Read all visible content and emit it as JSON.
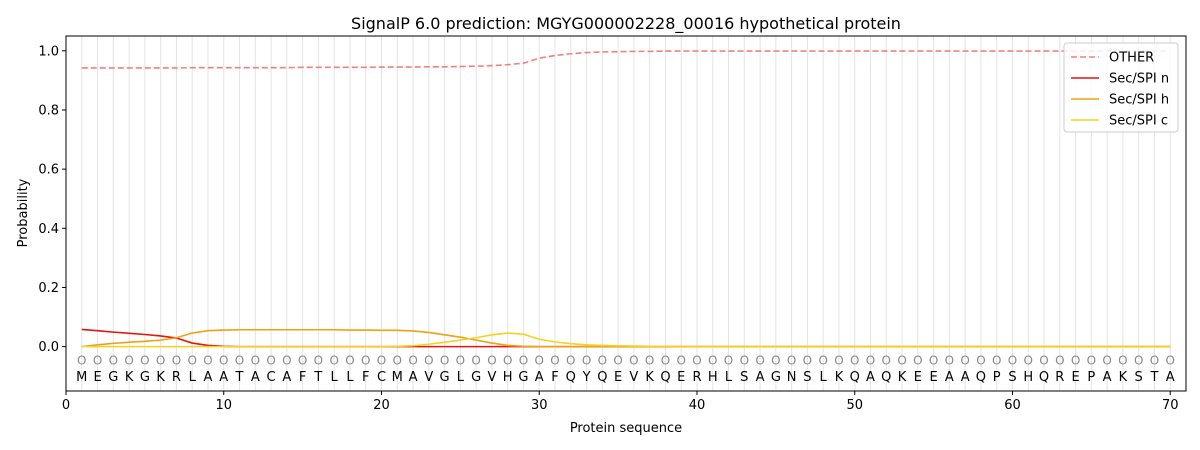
{
  "chart_data": {
    "type": "line",
    "title": "SignalP 6.0 prediction: MGYG000002228_00016 hypothetical protein",
    "xlabel": "Protein sequence",
    "ylabel": "Probability",
    "xlim": [
      0,
      71
    ],
    "ylim": [
      -0.15,
      1.05
    ],
    "x_ticks": [
      0,
      10,
      20,
      30,
      40,
      50,
      60,
      70
    ],
    "y_ticks": [
      0.0,
      0.2,
      0.4,
      0.6,
      0.8,
      1.0
    ],
    "x_tick_labels": [
      "0",
      "10",
      "20",
      "30",
      "40",
      "50",
      "60",
      "70"
    ],
    "y_tick_labels": [
      "0.0",
      "0.2",
      "0.4",
      "0.6",
      "0.8",
      "1.0"
    ],
    "legend_position": "top-right",
    "sequence": [
      "M",
      "E",
      "G",
      "K",
      "G",
      "K",
      "R",
      "L",
      "A",
      "A",
      "T",
      "A",
      "C",
      "A",
      "F",
      "T",
      "L",
      "L",
      "F",
      "C",
      "M",
      "A",
      "V",
      "G",
      "L",
      "G",
      "V",
      "H",
      "G",
      "A",
      "F",
      "Q",
      "Y",
      "Q",
      "E",
      "V",
      "K",
      "Q",
      "E",
      "R",
      "H",
      "L",
      "S",
      "A",
      "G",
      "N",
      "S",
      "L",
      "K",
      "Q",
      "A",
      "Q",
      "K",
      "E",
      "E",
      "A",
      "A",
      "Q",
      "P",
      "S",
      "H",
      "Q",
      "R",
      "E",
      "P",
      "A",
      "K",
      "S",
      "T",
      "A"
    ],
    "predicted_labels": [
      "O",
      "O",
      "O",
      "O",
      "O",
      "O",
      "O",
      "O",
      "O",
      "O",
      "O",
      "O",
      "O",
      "O",
      "O",
      "O",
      "O",
      "O",
      "O",
      "O",
      "O",
      "O",
      "O",
      "O",
      "O",
      "O",
      "O",
      "O",
      "O",
      "O",
      "O",
      "O",
      "O",
      "O",
      "O",
      "O",
      "O",
      "O",
      "O",
      "O",
      "O",
      "O",
      "O",
      "O",
      "O",
      "O",
      "O",
      "O",
      "O",
      "O",
      "O",
      "O",
      "O",
      "O",
      "O",
      "O",
      "O",
      "O",
      "O",
      "O",
      "O",
      "O",
      "O",
      "O",
      "O",
      "O",
      "O",
      "O",
      "O",
      "O"
    ],
    "label_level": -0.045,
    "series": [
      {
        "name": "OTHER",
        "color": "#f08080",
        "dash": true,
        "values": [
          0.942,
          0.942,
          0.942,
          0.942,
          0.942,
          0.942,
          0.942,
          0.943,
          0.943,
          0.943,
          0.943,
          0.943,
          0.943,
          0.943,
          0.944,
          0.944,
          0.944,
          0.944,
          0.944,
          0.945,
          0.945,
          0.945,
          0.946,
          0.946,
          0.947,
          0.948,
          0.95,
          0.953,
          0.958,
          0.975,
          0.984,
          0.99,
          0.994,
          0.996,
          0.997,
          0.998,
          0.998,
          0.999,
          0.999,
          0.999,
          0.999,
          0.999,
          0.999,
          0.999,
          0.999,
          0.999,
          0.999,
          0.999,
          0.999,
          0.999,
          0.999,
          0.999,
          0.999,
          0.999,
          0.999,
          0.999,
          0.999,
          0.999,
          0.999,
          0.999,
          0.999,
          0.999,
          0.999,
          0.999,
          0.999,
          0.999,
          0.999,
          0.999,
          0.999,
          0.999
        ]
      },
      {
        "name": "Sec/SPI n",
        "color": "#e8140c",
        "dash": false,
        "values": [
          0.058,
          0.054,
          0.049,
          0.045,
          0.041,
          0.036,
          0.029,
          0.012,
          0.004,
          0.001,
          0.0,
          0.0,
          0.0,
          0.0,
          0.0,
          0.0,
          0.0,
          0.0,
          0.0,
          0.0,
          0.0,
          0.0,
          0.0,
          0.0,
          0.0,
          0.0,
          0.0,
          0.0,
          0.0,
          0.0,
          0.0,
          0.0,
          0.0,
          0.0,
          0.0,
          0.0,
          0.0,
          0.0,
          0.0,
          0.0,
          0.0,
          0.0,
          0.0,
          0.0,
          0.0,
          0.0,
          0.0,
          0.0,
          0.0,
          0.0,
          0.0,
          0.0,
          0.0,
          0.0,
          0.0,
          0.0,
          0.0,
          0.0,
          0.0,
          0.0,
          0.0,
          0.0,
          0.0,
          0.0,
          0.0,
          0.0,
          0.0,
          0.0,
          0.0,
          0.0
        ]
      },
      {
        "name": "Sec/SPI h",
        "color": "#f0a010",
        "dash": false,
        "values": [
          0.0,
          0.006,
          0.011,
          0.015,
          0.018,
          0.022,
          0.03,
          0.046,
          0.054,
          0.056,
          0.057,
          0.057,
          0.057,
          0.057,
          0.057,
          0.057,
          0.057,
          0.056,
          0.056,
          0.055,
          0.055,
          0.053,
          0.048,
          0.04,
          0.032,
          0.022,
          0.012,
          0.004,
          0.001,
          0.0,
          0.0,
          0.0,
          0.0,
          0.0,
          0.0,
          0.0,
          0.0,
          0.0,
          0.0,
          0.0,
          0.0,
          0.0,
          0.0,
          0.0,
          0.0,
          0.0,
          0.0,
          0.0,
          0.0,
          0.0,
          0.0,
          0.0,
          0.0,
          0.0,
          0.0,
          0.0,
          0.0,
          0.0,
          0.0,
          0.0,
          0.0,
          0.0,
          0.0,
          0.0,
          0.0,
          0.0,
          0.0,
          0.0,
          0.0,
          0.0
        ]
      },
      {
        "name": "Sec/SPI c",
        "color": "#f5d21e",
        "dash": false,
        "values": [
          0.0,
          0.0,
          0.0,
          0.0,
          0.0,
          0.0,
          0.0,
          0.0,
          0.0,
          0.0,
          0.0,
          0.0,
          0.0,
          0.0,
          0.0,
          0.0,
          0.0,
          0.0,
          0.0,
          0.0,
          0.001,
          0.003,
          0.008,
          0.015,
          0.022,
          0.03,
          0.04,
          0.046,
          0.042,
          0.025,
          0.016,
          0.01,
          0.006,
          0.004,
          0.003,
          0.002,
          0.001,
          0.001,
          0.0,
          0.0,
          0.0,
          0.0,
          0.0,
          0.0,
          0.0,
          0.0,
          0.0,
          0.0,
          0.0,
          0.0,
          0.0,
          0.0,
          0.0,
          0.0,
          0.0,
          0.0,
          0.0,
          0.0,
          0.0,
          0.0,
          0.0,
          0.0,
          0.0,
          0.0,
          0.0,
          0.0,
          0.0,
          0.0,
          0.0,
          0.0
        ]
      }
    ]
  }
}
